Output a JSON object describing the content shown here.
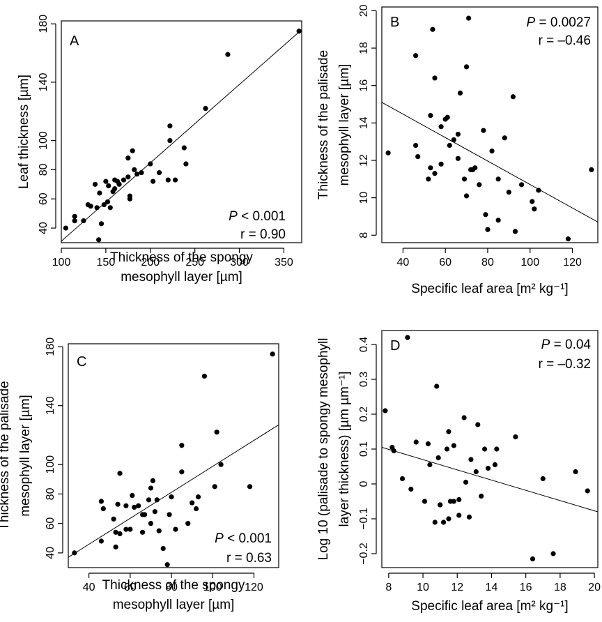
{
  "chart_data": [
    {
      "type": "scatter",
      "panel": "A",
      "xlabel": [
        "Thickness of the spongy",
        "mesophyll layer [µm]"
      ],
      "ylabel": [
        "Leaf thickness [µm]"
      ],
      "xlim": [
        100,
        370
      ],
      "ylim": [
        30,
        182
      ],
      "xticks": [
        100,
        150,
        200,
        250,
        300,
        350
      ],
      "yticks": [
        40,
        60,
        80,
        100,
        140,
        180
      ],
      "stats": {
        "p_prefix": "P",
        "p_rest": " < 0.001",
        "r": "r = 0.90"
      },
      "regression": {
        "x": [
          100,
          370
        ],
        "y": [
          31,
          176
        ]
      },
      "x": [
        105,
        115,
        115,
        125,
        130,
        133,
        138,
        140,
        142,
        143,
        145,
        148,
        150,
        152,
        153,
        155,
        158,
        160,
        160,
        163,
        165,
        170,
        175,
        175,
        177,
        177,
        180,
        182,
        185,
        190,
        200,
        203,
        210,
        220,
        222,
        222,
        228,
        238,
        240,
        262,
        287,
        367
      ],
      "y": [
        40,
        45,
        48,
        45,
        56,
        55,
        70,
        54,
        32,
        64,
        43,
        56,
        72,
        58,
        69,
        54,
        65,
        67,
        73,
        72,
        70,
        73,
        88,
        75,
        60,
        62,
        93,
        80,
        77,
        78,
        84,
        72,
        78,
        73,
        100,
        110,
        73,
        95,
        84,
        122,
        159,
        175
      ]
    },
    {
      "type": "scatter",
      "panel": "B",
      "xlabel": [
        "Specific leaf area [m² kg⁻¹]"
      ],
      "ylabel": [
        "Thickness of the palisade",
        "mesophyll layer [µm]"
      ],
      "xlim": [
        30,
        132
      ],
      "ylim": [
        7.6,
        20.2
      ],
      "xticks": [
        40,
        60,
        80,
        100,
        120
      ],
      "yticks": [
        8,
        10,
        12,
        14,
        16,
        18,
        20
      ],
      "stats": {
        "p_prefix": "P",
        "p_rest": " = 0.0027",
        "r": "r = –0.46"
      },
      "regression": {
        "x": [
          30,
          132
        ],
        "y": [
          15.1,
          8.7
        ]
      },
      "x": [
        33,
        46,
        46,
        47,
        52,
        53,
        53,
        54,
        55,
        55,
        58,
        58,
        60,
        61,
        62,
        64,
        66,
        66,
        67,
        69,
        70,
        70,
        71,
        72,
        73,
        74,
        76,
        78,
        79,
        80,
        82,
        85,
        85,
        88,
        90,
        92,
        93,
        96,
        101,
        102,
        104,
        118,
        129
      ],
      "y": [
        12.4,
        17.6,
        12.8,
        12.2,
        11.0,
        14.4,
        11.6,
        19.0,
        11.3,
        16.4,
        11.8,
        13.8,
        14.2,
        14.3,
        12.8,
        13.1,
        12.1,
        13.4,
        15.6,
        11.0,
        17.0,
        10.1,
        19.6,
        11.5,
        11.5,
        11.6,
        10.7,
        13.6,
        9.1,
        8.3,
        12.5,
        8.8,
        11.0,
        13.2,
        10.3,
        15.4,
        8.2,
        10.7,
        9.8,
        9.4,
        10.4,
        7.8,
        11.5
      ]
    },
    {
      "type": "scatter",
      "panel": "C",
      "xlabel": [
        "Thickness of the spongy",
        "mesophyll layer [µm]"
      ],
      "ylabel": [
        "Thickness of the palisade",
        "mesophyll layer [µm]"
      ],
      "xlim": [
        30,
        132
      ],
      "ylim": [
        30,
        182
      ],
      "xticks": [
        40,
        60,
        80,
        100,
        120
      ],
      "yticks": [
        40,
        60,
        80,
        100,
        140,
        180
      ],
      "stats": {
        "p_prefix": "P",
        "p_rest": " < 0.001",
        "r": "r = 0.63"
      },
      "regression": {
        "x": [
          30,
          132
        ],
        "y": [
          37,
          127
        ]
      },
      "x": [
        33,
        46,
        46,
        47,
        52,
        53,
        53,
        54,
        55,
        55,
        58,
        58,
        60,
        61,
        62,
        64,
        66,
        66,
        67,
        69,
        70,
        70,
        71,
        72,
        73,
        74,
        76,
        78,
        79,
        80,
        82,
        85,
        85,
        88,
        90,
        92,
        93,
        96,
        101,
        102,
        104,
        118,
        129
      ],
      "y": [
        40,
        48,
        75,
        70,
        63,
        54,
        44,
        73,
        94,
        53,
        72,
        56,
        56,
        79,
        71,
        72,
        54,
        66,
        66,
        76,
        84,
        60,
        89,
        68,
        76,
        55,
        43,
        32,
        66,
        78,
        56,
        95,
        113,
        60,
        74,
        70,
        78,
        160,
        85,
        122,
        100,
        85,
        175
      ]
    },
    {
      "type": "scatter",
      "panel": "D",
      "xlabel": [
        "Specific leaf area [m² kg⁻¹]"
      ],
      "ylabel": [
        "Log 10 (palisade to spongy mesophyll",
        "layer thickness) [µm µm⁻¹]"
      ],
      "xlim": [
        7.6,
        20.2
      ],
      "ylim": [
        -0.24,
        0.44
      ],
      "xticks": [
        8,
        10,
        12,
        14,
        16,
        18,
        20
      ],
      "yticks": [
        -0.2,
        -0.1,
        0,
        0.1,
        0.2,
        0.3,
        0.4
      ],
      "stats": {
        "p_prefix": "P",
        "p_rest": " = 0.04",
        "r": "r = –0.32"
      },
      "regression": {
        "x": [
          7.6,
          20.2
        ],
        "y": [
          0.105,
          -0.08
        ]
      },
      "x": [
        7.8,
        8.2,
        8.3,
        8.8,
        9.1,
        9.3,
        9.6,
        10.1,
        10.3,
        10.4,
        10.7,
        10.8,
        10.9,
        11.0,
        11.0,
        11.2,
        11.4,
        11.5,
        11.5,
        11.6,
        11.8,
        11.8,
        12.1,
        12.1,
        12.4,
        12.5,
        12.7,
        12.8,
        13.1,
        13.2,
        13.4,
        13.6,
        13.8,
        14.2,
        14.3,
        15.4,
        16.4,
        17.0,
        17.6,
        18.9,
        19.6
      ],
      "y": [
        0.21,
        0.105,
        0.095,
        0.015,
        0.42,
        -0.015,
        0.12,
        -0.05,
        0.115,
        0.055,
        -0.11,
        0.28,
        0.075,
        -0.06,
        -0.06,
        -0.11,
        0.1,
        -0.1,
        0.15,
        -0.05,
        -0.05,
        0.11,
        -0.09,
        -0.045,
        0.19,
        0.005,
        -0.095,
        0.07,
        0.035,
        0.17,
        -0.035,
        0.1,
        0.045,
        0.055,
        0.1,
        0.135,
        -0.215,
        0.015,
        -0.2,
        0.035,
        -0.02
      ]
    }
  ]
}
